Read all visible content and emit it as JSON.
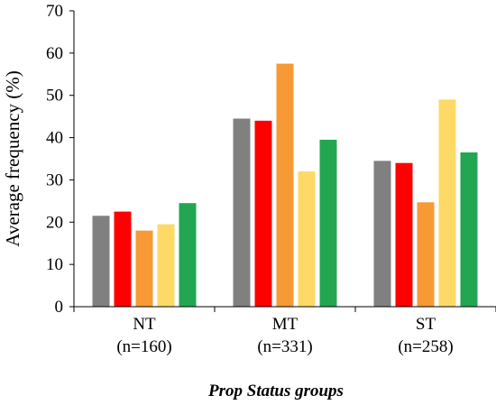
{
  "chart_data": {
    "type": "bar",
    "title": "",
    "xlabel": "Prop Status groups",
    "ylabel": "Average  frequency  (%)",
    "ylim": [
      0,
      70
    ],
    "yticks": [
      0,
      10,
      20,
      30,
      40,
      50,
      60,
      70
    ],
    "grid": false,
    "legend": "none",
    "categories": [
      {
        "name": "NT",
        "n": "(n=160)"
      },
      {
        "name": "MT",
        "n": "(n=331)"
      },
      {
        "name": "ST",
        "n": "(n=258)"
      }
    ],
    "series": [
      {
        "color": "#808080",
        "values": [
          21.5,
          44.5,
          34.5
        ]
      },
      {
        "color": "#ff0000",
        "values": [
          22.5,
          44.0,
          34.0
        ]
      },
      {
        "color": "#f79a35",
        "values": [
          18.0,
          57.5,
          24.7
        ]
      },
      {
        "color": "#ffd966",
        "values": [
          19.5,
          32.0,
          49.0
        ]
      },
      {
        "color": "#22a750",
        "values": [
          24.5,
          39.5,
          36.5
        ]
      }
    ]
  }
}
